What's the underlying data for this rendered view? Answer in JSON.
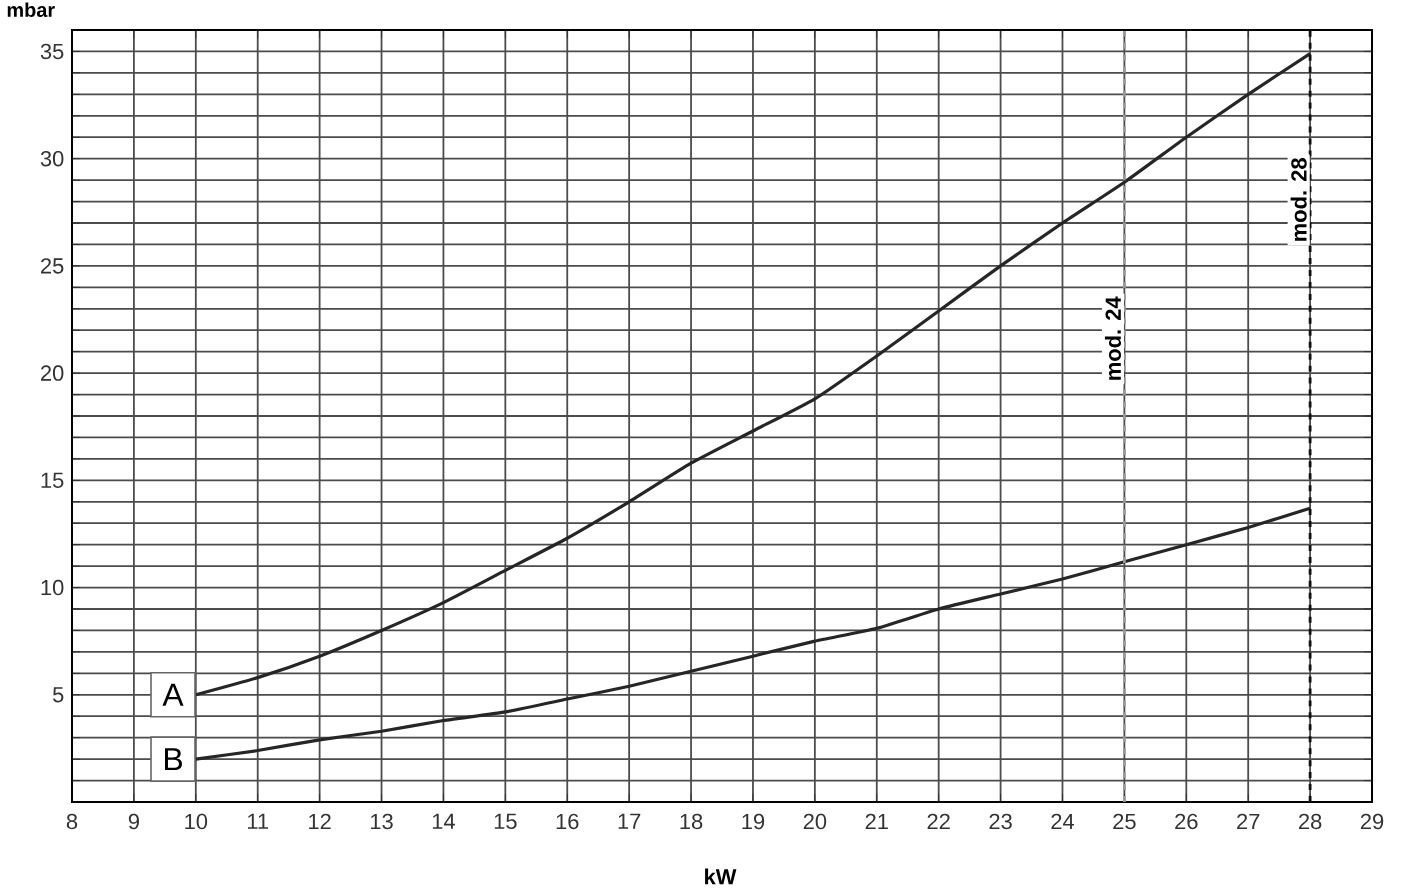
{
  "chart_data": {
    "type": "line",
    "ylabel": "mbar",
    "xlabel": "kW",
    "x": [
      10,
      11,
      12,
      13,
      14,
      15,
      16,
      17,
      18,
      19,
      20,
      21,
      22,
      23,
      24,
      25,
      26,
      27,
      28
    ],
    "series": [
      {
        "name": "A",
        "color": "#262626",
        "values": [
          5.0,
          5.8,
          6.8,
          8.0,
          9.3,
          10.8,
          12.3,
          14.0,
          15.8,
          17.3,
          18.8,
          20.8,
          22.9,
          25.0,
          27.0,
          28.9,
          31.0,
          33.0,
          34.9
        ]
      },
      {
        "name": "B",
        "color": "#262626",
        "values": [
          2.0,
          2.4,
          2.9,
          3.3,
          3.8,
          4.2,
          4.8,
          5.4,
          6.1,
          6.8,
          7.5,
          8.1,
          9.0,
          9.7,
          10.4,
          11.2,
          12.0,
          12.8,
          13.7
        ]
      }
    ],
    "xlim": [
      8,
      29
    ],
    "ylim": [
      0,
      36
    ],
    "xticks": [
      8,
      9,
      10,
      11,
      12,
      13,
      14,
      15,
      16,
      17,
      18,
      19,
      20,
      21,
      22,
      23,
      24,
      25,
      26,
      27,
      28,
      29
    ],
    "yticks": [
      {
        "value": 0,
        "label": null
      },
      {
        "value": 1,
        "label": null
      },
      {
        "value": 2,
        "label": null
      },
      {
        "value": 3,
        "label": null
      },
      {
        "value": 4,
        "label": null
      },
      5,
      {
        "value": 6,
        "label": null
      },
      {
        "value": 7,
        "label": null
      },
      {
        "value": 8,
        "label": null
      },
      {
        "value": 9,
        "label": null
      },
      10,
      {
        "value": 11,
        "label": null
      },
      {
        "value": 12,
        "label": null
      },
      {
        "value": 13,
        "label": null
      },
      {
        "value": 14,
        "label": null
      },
      15,
      {
        "value": 16,
        "label": null
      },
      {
        "value": 17,
        "label": null
      },
      {
        "value": 18,
        "label": null
      },
      {
        "value": 19,
        "label": null
      },
      20,
      {
        "value": 21,
        "label": null
      },
      {
        "value": 22,
        "label": null
      },
      {
        "value": 23,
        "label": null
      },
      {
        "value": 24,
        "label": null
      },
      25,
      {
        "value": 26,
        "label": null
      },
      {
        "value": 27,
        "label": null
      },
      {
        "value": 28,
        "label": null
      },
      {
        "value": 29,
        "label": null
      },
      30,
      {
        "value": 31,
        "label": null
      },
      {
        "value": 32,
        "label": null
      },
      {
        "value": 33,
        "label": null
      },
      {
        "value": 34,
        "label": null
      },
      35,
      {
        "value": 36,
        "label": null
      }
    ],
    "grid": true,
    "marker": "none",
    "line_style": "solid",
    "ref_lines": [
      {
        "axis": "x",
        "value": 25,
        "label": "mod. 24",
        "color": "#999999",
        "line_style": "dashed"
      },
      {
        "axis": "x",
        "value": 28,
        "label": "mod. 28",
        "color": "#111111",
        "line_style": "dashed"
      }
    ]
  }
}
